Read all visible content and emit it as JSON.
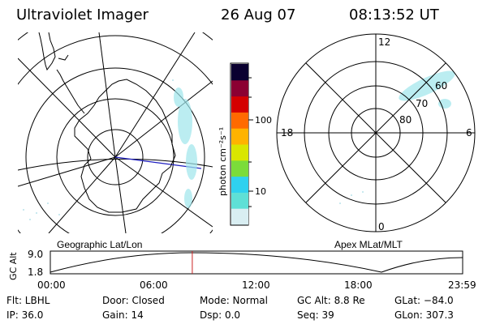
{
  "header": {
    "instrument": "Ultraviolet Imager",
    "date": "26 Aug 07",
    "time": "08:13:52 UT"
  },
  "left_map": {
    "label": "Geographic Lat/Lon"
  },
  "right_map": {
    "label": "Apex MLat/MLT",
    "mlt_labels": {
      "top": "12",
      "left": "18",
      "right": "6",
      "bottom": "0"
    },
    "lat_labels": [
      "60",
      "70",
      "80"
    ]
  },
  "colorbar": {
    "unit_label": "photon cm⁻²s⁻¹",
    "ticks": [
      "100",
      "10"
    ],
    "colors": [
      "#d9eef2",
      "#5fe0d6",
      "#2fd1ef",
      "#7bdc3a",
      "#d9e600",
      "#ffb300",
      "#ff6a00",
      "#d40000",
      "#8b0032",
      "#0a0030"
    ]
  },
  "altitude_plot": {
    "ylabel": "GC Alt",
    "y_ticks": [
      "9.0",
      "1.8"
    ],
    "x_ticks": [
      "00:00",
      "06:00",
      "12:00",
      "18:00",
      "23:59"
    ],
    "current_time_fraction": 0.3443,
    "marker_color": "#cc2222"
  },
  "info": {
    "flt": "Flt: LBHL",
    "ip": "IP: 36.0",
    "door": "Door: Closed",
    "gain": "Gain: 14",
    "mode": "Mode: Normal",
    "dsp": "Dsp:     0.0",
    "gcalt": "GC Alt: 8.8 Re",
    "seq": "Seq: 39",
    "glat": "GLat: −84.0",
    "glon": "GLon: 307.3"
  }
}
